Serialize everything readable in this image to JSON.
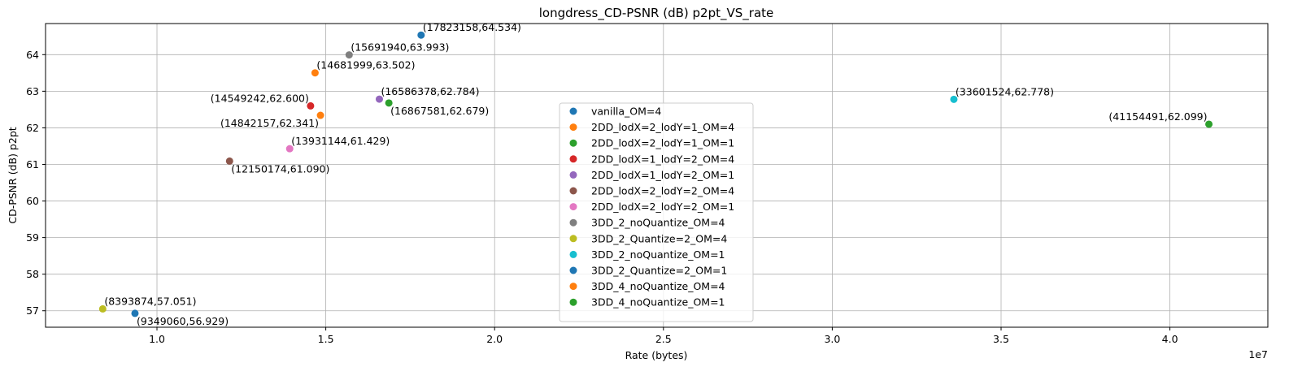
{
  "chart_data": {
    "type": "scatter",
    "title": "longdress_CD-PSNR (dB) p2pt_VS_rate",
    "xlabel": "Rate (bytes)",
    "ylabel": "CD-PSNR (dB) p2pt",
    "x_offset_label": "1e7",
    "xlim": [
      6700000,
      42900000
    ],
    "ylim": [
      56.55,
      64.85
    ],
    "x_ticks": [
      10000000,
      15000000,
      20000000,
      25000000,
      30000000,
      35000000,
      40000000
    ],
    "x_tick_labels": [
      "1.0",
      "1.5",
      "2.0",
      "2.5",
      "3.0",
      "3.5",
      "4.0"
    ],
    "y_ticks": [
      57,
      58,
      59,
      60,
      61,
      62,
      63,
      64
    ],
    "y_tick_labels": [
      "57",
      "58",
      "59",
      "60",
      "61",
      "62",
      "63",
      "64"
    ],
    "grid": true,
    "legend_position": "center",
    "series": [
      {
        "name": "vanilla_OM=4",
        "color": "#1f77b4",
        "x": 9349060,
        "y": 56.929,
        "label": "(9349060,56.929)",
        "label_pos": "below-right"
      },
      {
        "name": "2DD_lodX=2_lodY=1_OM=4",
        "color": "#ff7f0e",
        "x": 14842157,
        "y": 62.341,
        "label": "(14842157,62.341)",
        "label_pos": "below-left"
      },
      {
        "name": "2DD_lodX=2_lodY=1_OM=1",
        "color": "#2ca02c",
        "x": 16867581,
        "y": 62.679,
        "label": "(16867581,62.679)",
        "label_pos": "below-right"
      },
      {
        "name": "2DD_lodX=1_lodY=2_OM=4",
        "color": "#d62728",
        "x": 14549242,
        "y": 62.6,
        "label": "(14549242,62.600)",
        "label_pos": "above-left"
      },
      {
        "name": "2DD_lodX=1_lodY=2_OM=1",
        "color": "#9467bd",
        "x": 16586378,
        "y": 62.784,
        "label": "(16586378,62.784)",
        "label_pos": "above-right"
      },
      {
        "name": "2DD_lodX=2_lodY=2_OM=4",
        "color": "#8c564b",
        "x": 12150174,
        "y": 61.09,
        "label": "(12150174,61.090)",
        "label_pos": "below-right"
      },
      {
        "name": "2DD_lodX=2_lodY=2_OM=1",
        "color": "#e377c2",
        "x": 13931144,
        "y": 61.429,
        "label": "(13931144,61.429)",
        "label_pos": "above-right"
      },
      {
        "name": "3DD_2_noQuantize_OM=4",
        "color": "#7f7f7f",
        "x": 15691940,
        "y": 63.993,
        "label": "(15691940,63.993)",
        "label_pos": "above-right"
      },
      {
        "name": "3DD_2_Quantize=2_OM=4",
        "color": "#bcbd22",
        "x": 8393874,
        "y": 57.051,
        "label": "(8393874,57.051)",
        "label_pos": "above-right"
      },
      {
        "name": "3DD_2_noQuantize_OM=1",
        "color": "#17becf",
        "x": 33601524,
        "y": 62.778,
        "label": "(33601524,62.778)",
        "label_pos": "above-right"
      },
      {
        "name": "3DD_2_Quantize=2_OM=1",
        "color": "#1f77b4",
        "x": 17823158,
        "y": 64.534,
        "label": "(17823158,64.534)",
        "label_pos": "above-right"
      },
      {
        "name": "3DD_4_noQuantize_OM=4",
        "color": "#ff7f0e",
        "x": 14681999,
        "y": 63.502,
        "label": "(14681999,63.502)",
        "label_pos": "above-right"
      },
      {
        "name": "3DD_4_noQuantize_OM=1",
        "color": "#2ca02c",
        "x": 41154491,
        "y": 62.099,
        "label": "(41154491,62.099)",
        "label_pos": "above-left"
      }
    ]
  }
}
